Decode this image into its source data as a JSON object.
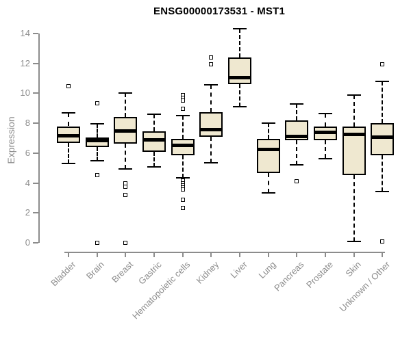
{
  "page": {
    "background": "#ffffff"
  },
  "chart_data": {
    "type": "boxplot",
    "title": "ENSG00000173531 - MST1",
    "ylabel": "Expression",
    "xlabel": "",
    "ylim": [
      0,
      14
    ],
    "yticks": [
      0,
      2,
      4,
      6,
      8,
      10,
      12,
      14
    ],
    "grid": false,
    "legend": false,
    "colors": {
      "box_fill": "#efe8d0",
      "box_border": "#000000",
      "median": "#000000",
      "whisker": "#000000",
      "axis": "#8c8c8c",
      "tick_label": "#8c8c8c",
      "title": "#000000"
    },
    "categories": [
      "Bladder",
      "Brain",
      "Breast",
      "Gastric",
      "Hematopoietic cells",
      "Kidney",
      "Liver",
      "Lung",
      "Pancreas",
      "Prostate",
      "Skin",
      "Unknown / Other"
    ],
    "boxes": [
      {
        "category": "Bladder",
        "whisker_low": 5.3,
        "q1": 6.7,
        "median": 7.15,
        "q3": 7.8,
        "whisker_high": 8.7,
        "outliers": [
          10.5
        ]
      },
      {
        "category": "Brain",
        "whisker_low": 5.5,
        "q1": 6.4,
        "median": 6.85,
        "q3": 7.05,
        "whisker_high": 7.95,
        "outliers": [
          9.35,
          4.55,
          0
        ]
      },
      {
        "category": "Breast",
        "whisker_low": 4.95,
        "q1": 6.65,
        "median": 7.5,
        "q3": 8.4,
        "whisker_high": 10.0,
        "outliers": [
          4.0,
          3.75,
          3.2,
          0
        ]
      },
      {
        "category": "Gastric",
        "whisker_low": 5.1,
        "q1": 6.1,
        "median": 6.9,
        "q3": 7.45,
        "whisker_high": 8.6,
        "outliers": []
      },
      {
        "category": "Hematopoietic cells",
        "whisker_low": 4.35,
        "q1": 5.85,
        "median": 6.5,
        "q3": 6.95,
        "whisker_high": 8.5,
        "outliers": [
          9.9,
          9.7,
          9.5,
          8.95,
          4.15,
          4.0,
          3.85,
          3.7,
          3.55,
          2.9,
          2.35
        ]
      },
      {
        "category": "Kidney",
        "whisker_low": 5.35,
        "q1": 7.1,
        "median": 7.55,
        "q3": 8.75,
        "whisker_high": 10.55,
        "outliers": [
          12.4,
          11.95
        ]
      },
      {
        "category": "Liver",
        "whisker_low": 9.1,
        "q1": 10.6,
        "median": 11.05,
        "q3": 12.4,
        "whisker_high": 14.3,
        "outliers": []
      },
      {
        "category": "Lung",
        "whisker_low": 3.35,
        "q1": 4.65,
        "median": 6.25,
        "q3": 6.95,
        "whisker_high": 8.0,
        "outliers": []
      },
      {
        "category": "Pancreas",
        "whisker_low": 5.2,
        "q1": 6.85,
        "median": 7.1,
        "q3": 8.2,
        "whisker_high": 9.3,
        "outliers": [
          4.1
        ]
      },
      {
        "category": "Prostate",
        "whisker_low": 5.65,
        "q1": 6.85,
        "median": 7.4,
        "q3": 7.8,
        "whisker_high": 8.65,
        "outliers": []
      },
      {
        "category": "Skin",
        "whisker_low": 0.1,
        "q1": 4.55,
        "median": 7.25,
        "q3": 7.8,
        "whisker_high": 9.9,
        "outliers": []
      },
      {
        "category": "Unknown / Other",
        "whisker_low": 3.45,
        "q1": 5.85,
        "median": 7.05,
        "q3": 8.0,
        "whisker_high": 10.8,
        "outliers": [
          11.95,
          0.1
        ]
      }
    ]
  }
}
